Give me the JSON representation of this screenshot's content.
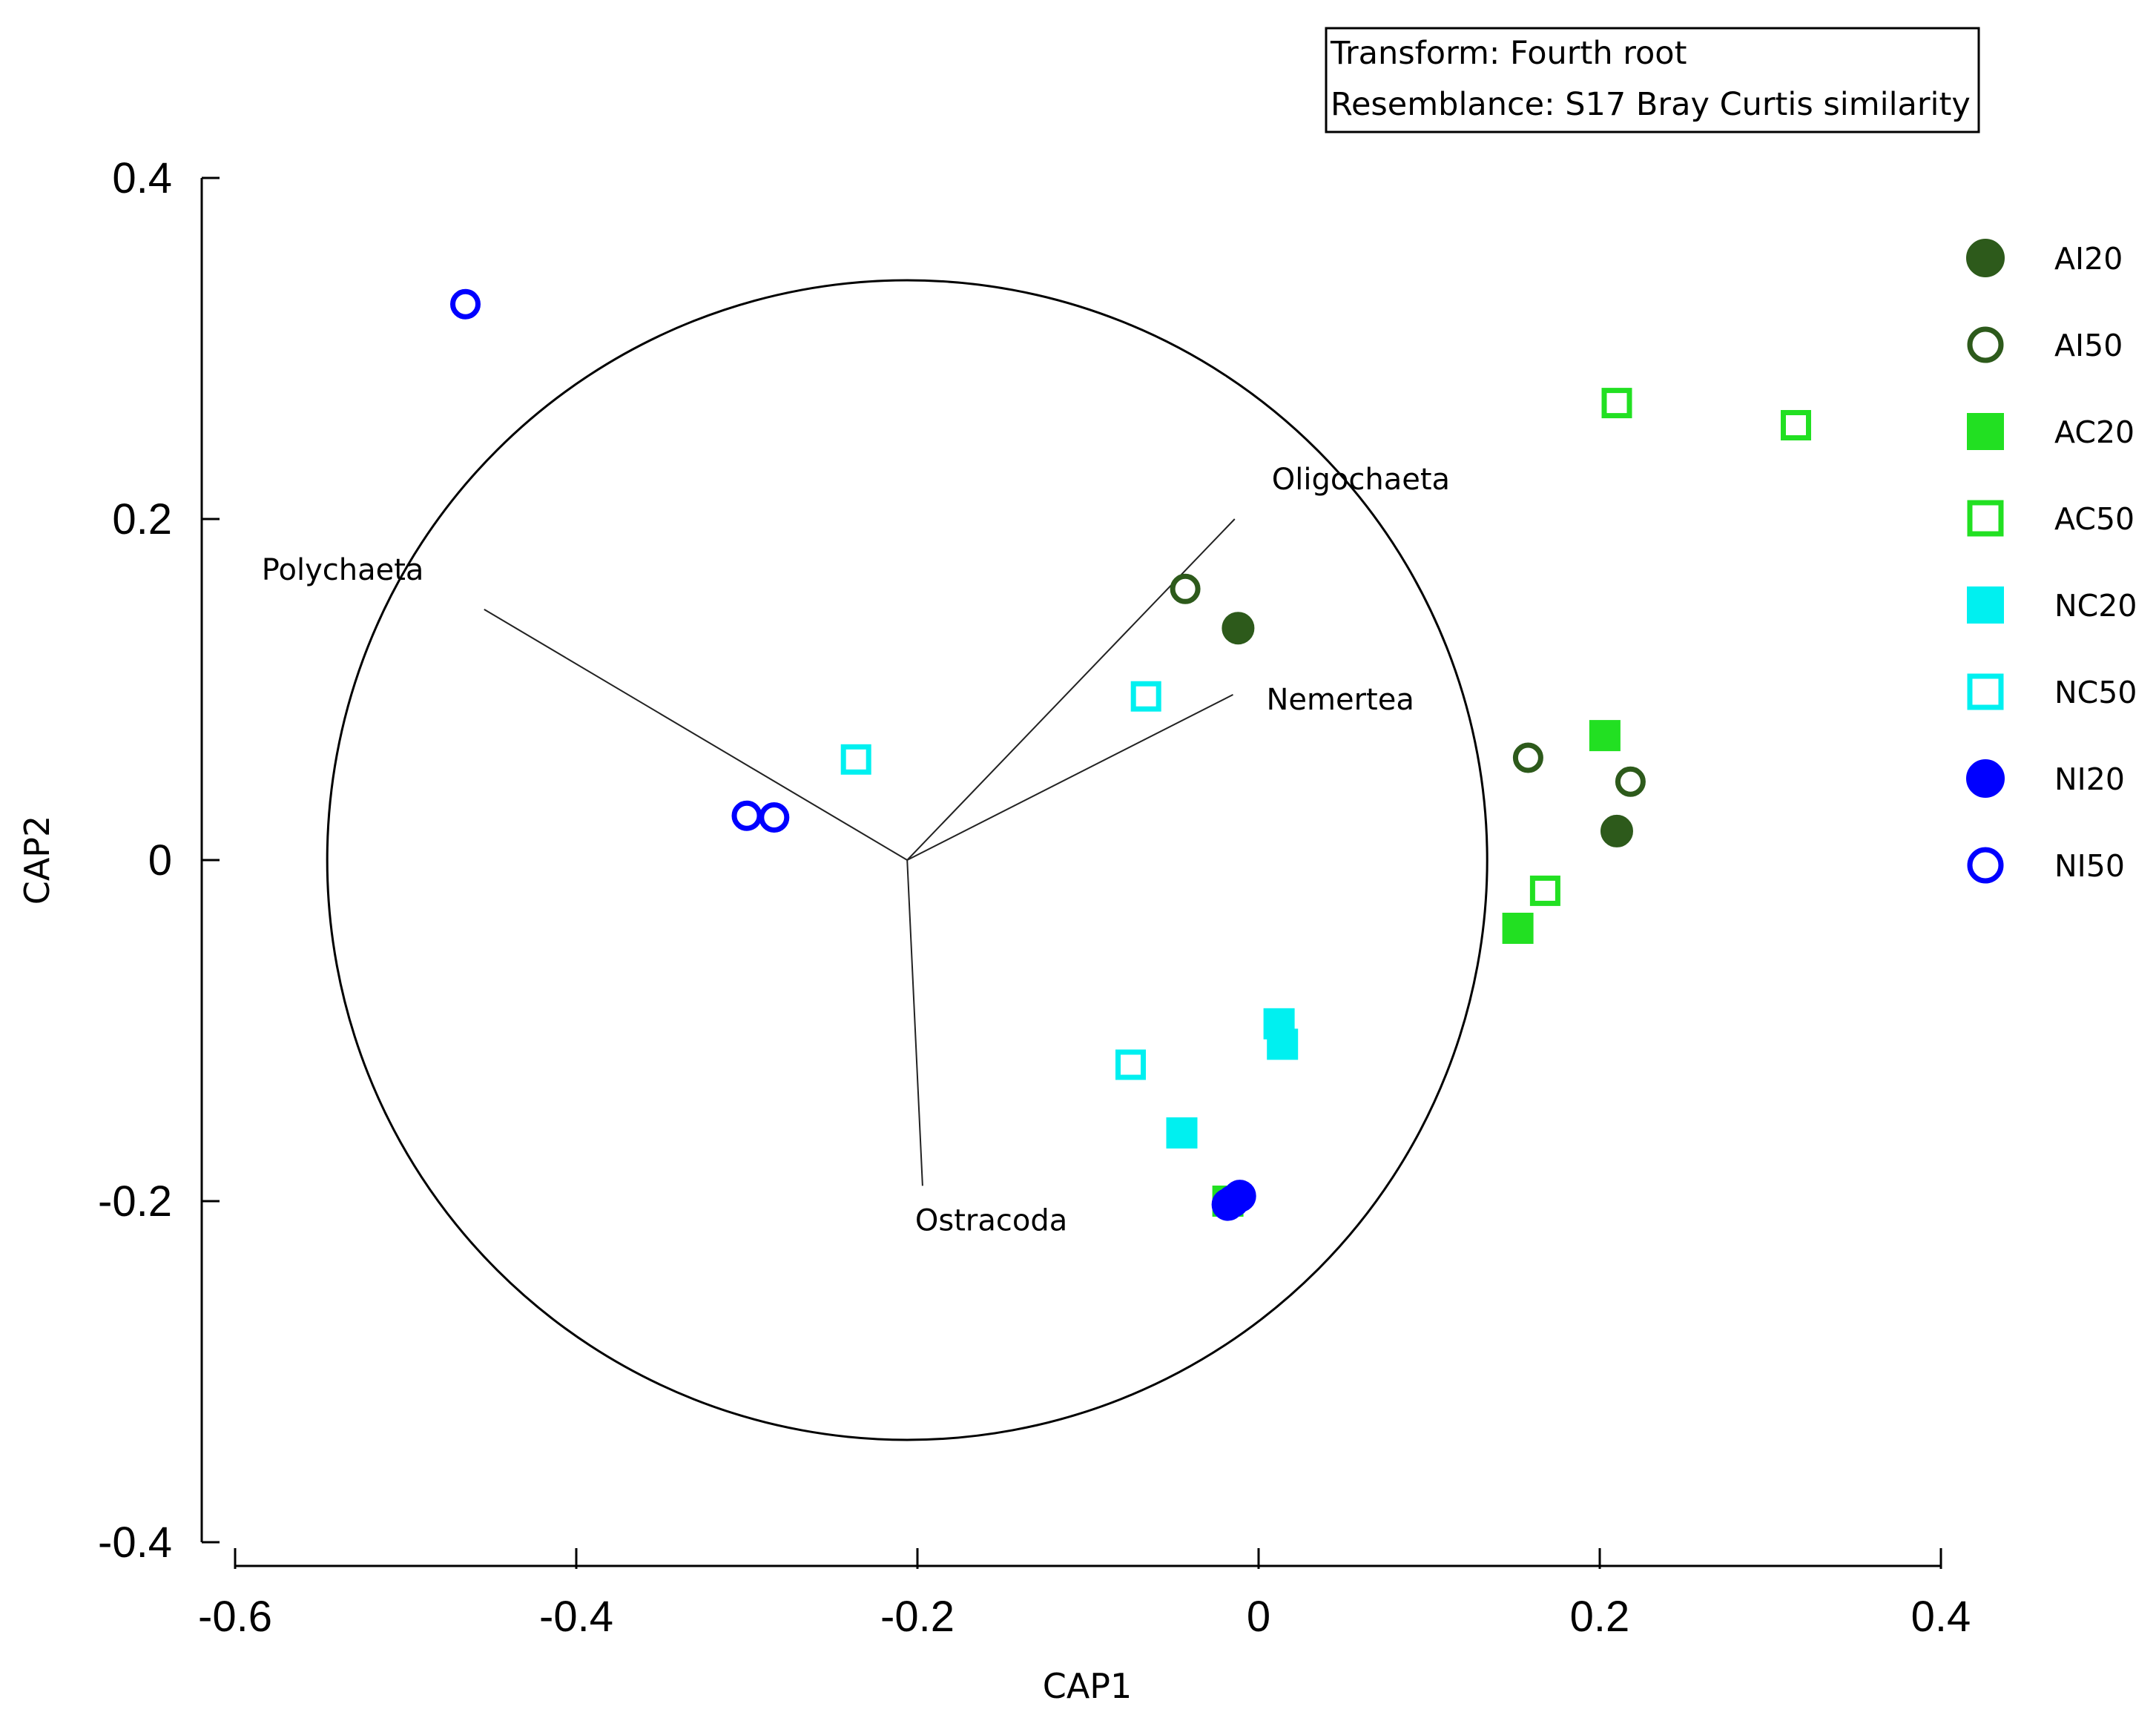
{
  "chart_data": {
    "type": "scatter",
    "xlabel": "CAP1",
    "ylabel": "CAP2",
    "xlim": [
      -0.6,
      0.4
    ],
    "ylim": [
      -0.4,
      0.4
    ],
    "x_ticks": [
      -0.6,
      -0.4,
      -0.2,
      0,
      0.2,
      0.4
    ],
    "y_ticks": [
      0.4,
      0.2,
      0,
      -0.2,
      -0.4
    ],
    "x_tick_labels": [
      "-0.6",
      "-0.4",
      "-0.2",
      "0",
      "0.2",
      "0.4"
    ],
    "y_tick_labels": [
      "0.4",
      "0.2",
      "0",
      "-0.2",
      "-0.4"
    ],
    "info_box": [
      "Transform: Fourth root",
      "Resemblance: S17 Bray Curtis similarity"
    ],
    "legend_placement": "right",
    "correlation_circle": {
      "center": [
        -0.206,
        0
      ],
      "radius": 0.34
    },
    "vectors": [
      {
        "name": "Polychaeta",
        "start": [
          -0.206,
          0
        ],
        "end": [
          -0.454,
          0.147
        ]
      },
      {
        "name": "Oligochaeta",
        "start": [
          -0.206,
          0
        ],
        "end": [
          -0.014,
          0.2
        ]
      },
      {
        "name": "Nemertea",
        "start": [
          -0.206,
          0
        ],
        "end": [
          -0.015,
          0.097
        ]
      },
      {
        "name": "Ostracoda",
        "start": [
          -0.206,
          0
        ],
        "end": [
          -0.197,
          -0.191
        ]
      }
    ],
    "series": [
      {
        "name": "AI20",
        "marker": "circle",
        "filled": true,
        "color": "#2d5a1b",
        "points": [
          [
            -0.012,
            0.136
          ],
          [
            0.21,
            0.017
          ]
        ]
      },
      {
        "name": "AI50",
        "marker": "circle",
        "filled": false,
        "color": "#2d5a1b",
        "points": [
          [
            -0.043,
            0.159
          ],
          [
            0.158,
            0.06
          ],
          [
            0.218,
            0.046
          ]
        ]
      },
      {
        "name": "AC20",
        "marker": "square",
        "filled": true,
        "color": "#22e022",
        "points": [
          [
            0.203,
            0.073
          ],
          [
            0.152,
            -0.04
          ],
          [
            -0.018,
            -0.2
          ]
        ]
      },
      {
        "name": "AC50",
        "marker": "square",
        "filled": false,
        "color": "#22e022",
        "points": [
          [
            0.21,
            0.268
          ],
          [
            0.315,
            0.255
          ],
          [
            0.168,
            -0.018
          ]
        ]
      },
      {
        "name": "NC20",
        "marker": "square",
        "filled": true,
        "color": "#00f0f0",
        "points": [
          [
            0.012,
            -0.096
          ],
          [
            0.014,
            -0.108
          ],
          [
            -0.045,
            -0.16
          ]
        ]
      },
      {
        "name": "NC50",
        "marker": "square",
        "filled": false,
        "color": "#00f0f0",
        "points": [
          [
            -0.066,
            0.096
          ],
          [
            -0.236,
            0.059
          ],
          [
            -0.075,
            -0.12
          ]
        ]
      },
      {
        "name": "NI20",
        "marker": "circle",
        "filled": true,
        "color": "#0000ff",
        "points": [
          [
            -0.015,
            -0.2
          ],
          [
            -0.018,
            -0.202
          ],
          [
            -0.011,
            -0.197
          ]
        ]
      },
      {
        "name": "NI50",
        "marker": "circle",
        "filled": false,
        "color": "#0000ff",
        "points": [
          [
            -0.465,
            0.326
          ],
          [
            -0.3,
            0.026
          ],
          [
            -0.284,
            0.025
          ]
        ]
      }
    ]
  }
}
